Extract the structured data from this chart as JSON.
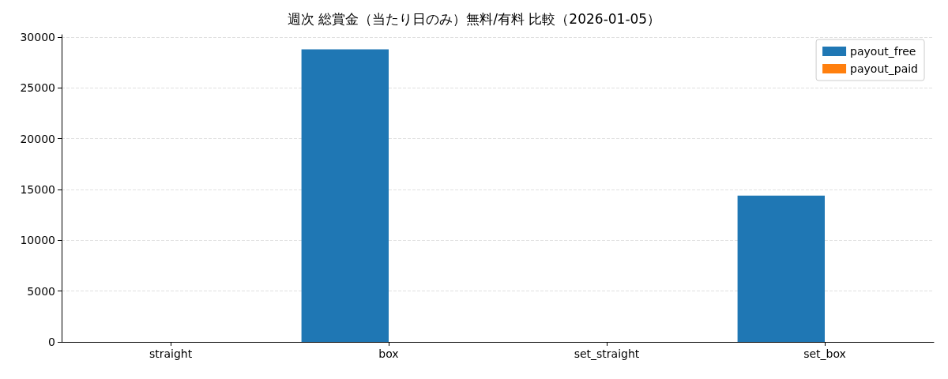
{
  "chart_data": {
    "type": "bar",
    "title": "週次 総賞金（当たり日のみ）無料/有料 比較（2026-01-05）",
    "categories": [
      "straight",
      "box",
      "set_straight",
      "set_box"
    ],
    "series": [
      {
        "name": "payout_free",
        "color": "#1f77b4",
        "values": [
          0,
          28800,
          0,
          14400
        ]
      },
      {
        "name": "payout_paid",
        "color": "#ff7f0e",
        "values": [
          0,
          0,
          0,
          0
        ]
      }
    ],
    "ylim": [
      0,
      30240
    ],
    "yticks": [
      0,
      5000,
      10000,
      15000,
      20000,
      25000,
      30000
    ],
    "grid": "y",
    "legend": "top right"
  }
}
